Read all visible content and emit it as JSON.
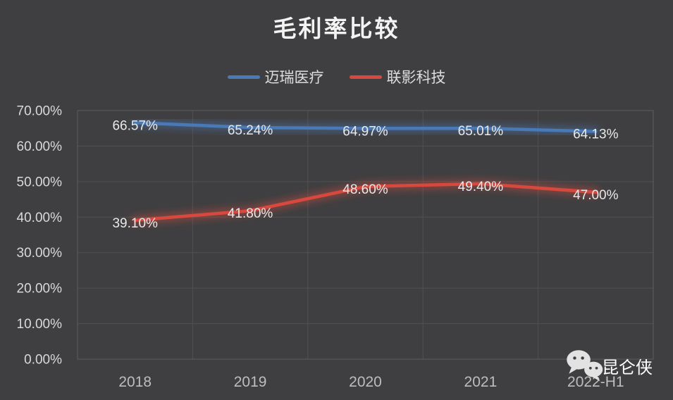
{
  "chart_data": {
    "type": "line",
    "title": "毛利率比较",
    "categories": [
      "2018",
      "2019",
      "2020",
      "2021",
      "2022-H1"
    ],
    "series": [
      {
        "name": "迈瑞医疗",
        "color": "#4a79b8",
        "values": [
          66.57,
          65.24,
          64.97,
          65.01,
          64.13
        ],
        "labels": [
          "66.57%",
          "65.24%",
          "64.97%",
          "65.01%",
          "64.13%"
        ]
      },
      {
        "name": "联影科技",
        "color": "#d7493e",
        "values": [
          39.1,
          41.8,
          48.6,
          49.4,
          47.0
        ],
        "labels": [
          "39.10%",
          "41.80%",
          "48.60%",
          "49.40%",
          "47.00%"
        ]
      }
    ],
    "ylim": [
      0,
      70
    ],
    "ytick_step": 10,
    "ytick_labels": [
      "0.00%",
      "10.00%",
      "20.00%",
      "30.00%",
      "40.00%",
      "50.00%",
      "60.00%",
      "70.00%"
    ],
    "grid": true,
    "legend_position": "top"
  },
  "colors": {
    "background": "#3f3f41",
    "gridline": "#515153",
    "plot_border": "#5e5e60",
    "xtick_text": "#bdbdbd",
    "ytick_text": "#d9d9d9",
    "data_label_text": "#e9e9e9",
    "title_text": "#f3f3f3",
    "watermark_icon": "#e2e2e2"
  },
  "watermark": {
    "text": "昆仑侠",
    "icon": "wechat-icon"
  }
}
